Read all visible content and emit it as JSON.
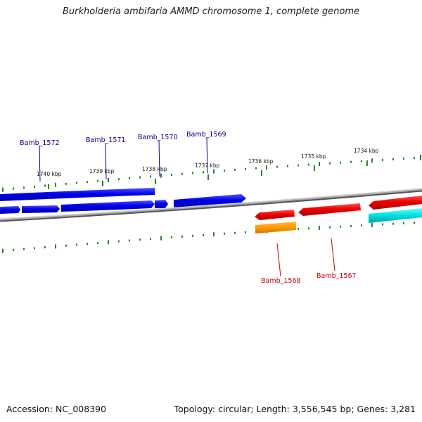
{
  "title": "Burkholderia ambifaria AMMD chromosome 1, complete genome",
  "footer": {
    "accession": "Accession: NC_008390",
    "summary": "Topology: circular; Length: 3,556,545 bp; Genes: 3,281"
  },
  "ticks": [
    "1740 kbp",
    "1739 kbp",
    "1738 kbp",
    "1737 kbp",
    "1736 kbp",
    "1735 kbp",
    "1734 kbp"
  ],
  "genes": {
    "top": [
      "Bamb_1572",
      "Bamb_1571",
      "Bamb_1570",
      "Bamb_1569"
    ],
    "bottom": [
      "Bamb_1568",
      "Bamb_1567"
    ]
  },
  "colors": {
    "forward_gene": "#0000ee",
    "reverse_gene": "#ee0000",
    "orange_feature": "#ff9900",
    "cyan_feature": "#00dddd",
    "top_label": "#00008b",
    "bottom_label": "#cc0000",
    "tick": "#228822",
    "backbone": "#888888"
  }
}
